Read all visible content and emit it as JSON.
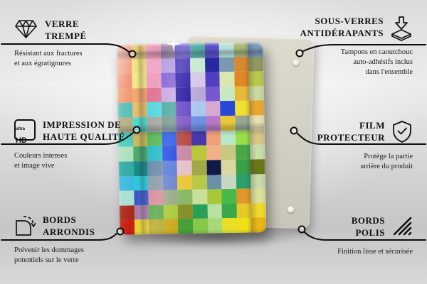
{
  "product": {
    "description": "glass photo panel with multicolor pixel mosaic print",
    "backing_color": "#d6d4c8",
    "mosaic": {
      "cols": 10,
      "rows": [
        "#e8907a,#e8c464,#e89ab8,#9b85a8,#6a5acd,#4aa8a0,#5a50c8,#b8e0d8,#a8b878,#7a98b8",
        "#f0967a,#f0e070,#f0a8c8,#b8a0e0,#4838b8,#c8e8d0,#2828a0,#7a98b0,#d88830,#909860",
        "#f08868,#f0e878,#f0a0c0,#8868d8,#3020a8,#d8c8e8,#5040c0,#d8e8b0,#e08828,#b8c848",
        "#f09060,#f0a060,#e07898,#c8a8e8,#2818a0,#b8a8d8,#7858d0,#c8e8c0,#e8b838,#c8d8a0",
        "#48b8b0,#e8b860,#58d8e0,#50a8a0,#6848c8,#a8c8f0,#d8a8d0,#2848d8,#f0e030,#e8a830",
        "#b0a878,#48d8c8,#a8a8a0,#789890,#8058c8,#7090e0,#b878c8,#e8c838,#98a890,#e8e0b0",
        "#40c8b8,#c8b858,#58b858,#2858e8,#b84840,#4838b0,#f0a078,#b8e8c8,#98e048,#d8c888",
        "#a8e0b8,#48a868,#28b8c8,#2048e0,#c888a8,#b8c838,#f0b088,#c8c880,#48a848,#c8e0a8",
        "#28a8a0,#188888,#6888a8,#5878d8,#e8c0c8,#a0a848,#101848,#d8d8a0,#38a048,#687818",
        "#38b8e0,#28c8d8,#8898a8,#6880d0,#e8c838,#b8c848,#6890a8,#c8d8c0,#28a068,#c8d8a8",
        "#a8e0d0,#3858c8,#d88898,#98a888,#88b868,#c8e098,#a8c838,#48b848,#e09828,#d8e098",
        "#a82818,#a878a8,#58a848,#a8c838,#889028,#28a058,#b8e0a0,#38a848,#e8c828,#f0d828",
        "#c82010,#e8d028,#b8a828,#c8a818,#48a038,#88c848,#a8d878,#e8e028,#f0e018,#e8b818"
      ]
    }
  },
  "callouts": {
    "verre_trempe": {
      "icon": "diamond-icon",
      "title1": "VERRE",
      "title2": "TREMPÉ",
      "sub1": "Résistant aux fractures",
      "sub2": "et aux égratignures"
    },
    "impression": {
      "icon": "ultra-hd-icon",
      "icon_small": "ultra",
      "icon_big": "HD",
      "title1": "IMPRESSION DE",
      "title2": "HAUTE QUALITÉ",
      "sub1": "Couleurs intenses",
      "sub2": "et image vive"
    },
    "bords_arrondis": {
      "icon": "rounded-corner-icon",
      "title1": "BORDS",
      "title2": "ARRONDIS",
      "sub1": "Prévenir les dommages",
      "sub2": "potentiels sur le verre"
    },
    "sous_verres": {
      "icon": "coaster-pad-icon",
      "title1": "SOUS-VERRES",
      "title2": "ANTIDÉRAPANTS",
      "sub1": "Tampons en caoutchouc",
      "sub2": "auto-adhésifs inclus",
      "sub3": "dans l'ensemble"
    },
    "film_protecteur": {
      "icon": "shield-check-icon",
      "title1": "FILM",
      "title2": "PROTECTEUR",
      "sub1": "Protège la partie",
      "sub2": "arrière du produit"
    },
    "bords_polis": {
      "icon": "polished-edge-icon",
      "title1": "BORDS",
      "title2": "POLIS",
      "sub1": "Finition lisse et sécurisée"
    }
  },
  "line_color": "#0d0d0d"
}
